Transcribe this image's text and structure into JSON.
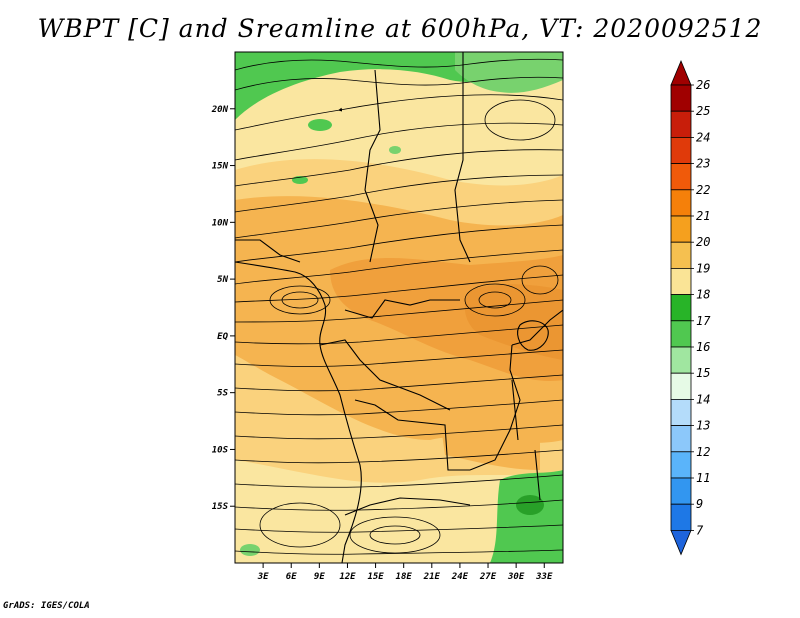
{
  "title": "WBPT [C] and Sreamline at 600hPa, VT: 2020092512",
  "credit": "GrADS: IGES/COLA",
  "map": {
    "lat_labels": [
      "20N",
      "15N",
      "10N",
      "5N",
      "EQ",
      "5S",
      "10S",
      "15S"
    ],
    "lat_values": [
      20,
      15,
      10,
      5,
      0,
      -5,
      -10,
      -15
    ],
    "lon_labels": [
      "3E",
      "6E",
      "9E",
      "12E",
      "15E",
      "18E",
      "21E",
      "24E",
      "27E",
      "30E",
      "33E"
    ],
    "lon_values": [
      3,
      6,
      9,
      12,
      15,
      18,
      21,
      24,
      27,
      30,
      33
    ],
    "lon_range": [
      0,
      35
    ],
    "lat_range": [
      -20,
      25
    ]
  },
  "colorbar": {
    "labels": [
      "26",
      "25",
      "24",
      "23",
      "22",
      "21",
      "20",
      "19",
      "18",
      "17",
      "16",
      "15",
      "14",
      "13",
      "12",
      "11",
      "9",
      "7"
    ],
    "colors": [
      "#a00000",
      "#c81e0a",
      "#e03a0a",
      "#f05a0a",
      "#f5800a",
      "#f5a01e",
      "#f5c050",
      "#fae496",
      "#28b428",
      "#50c850",
      "#a0e6a0",
      "#e6fae6",
      "#b4dcfa",
      "#8cc8fa",
      "#5ab4fa",
      "#3296f0",
      "#1e78e6"
    ],
    "arrow_top_color": "#a00000",
    "arrow_bottom_color": "#1e64dc"
  },
  "colors": {
    "warm_orange": "#f0a03c",
    "orange": "#f5b450",
    "light_orange": "#fad27d",
    "pale_yellow": "#fae6a0",
    "green": "#50c850",
    "light_green": "#78d26e",
    "dark_green": "#28a028"
  }
}
